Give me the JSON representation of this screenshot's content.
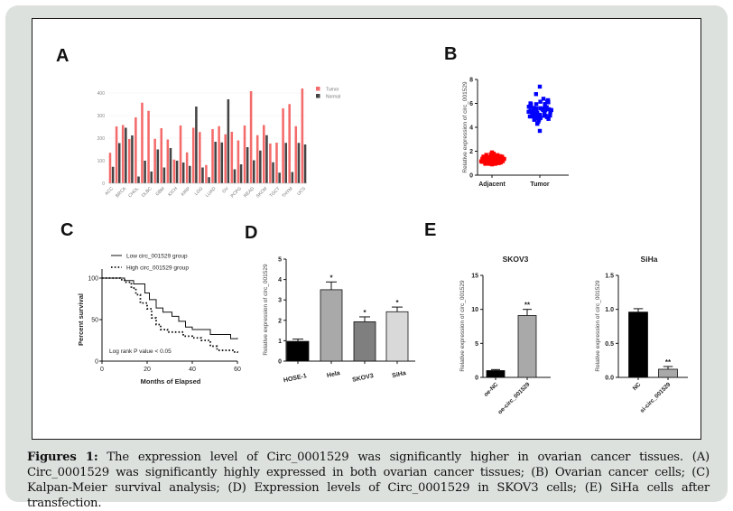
{
  "caption": {
    "lead": "Figures 1:",
    "text": " The expression level of Circ_0001529 was significantly higher in ovarian cancer tissues. (A) Circ_0001529 was significantly highly expressed in both ovarian cancer tissues; (B) Ovarian cancer cells; (C) Kalpan-Meier survival analysis; (D) Expression levels of Circ_0001529 in SKOV3 cells; (E) SiHa cells after transfection."
  },
  "panel_labels": {
    "a": "A",
    "b": "B",
    "c": "C",
    "d": "D",
    "e": "E"
  },
  "colors": {
    "tumor": "#f46b6b",
    "normal": "#444444",
    "adjacent": "#ff0000",
    "tumor_b": "#0000ff",
    "background": "#dde1de"
  },
  "chart_data": [
    {
      "id": "A",
      "type": "bar",
      "title": "",
      "xlabel": "",
      "ylabel": "",
      "ylim": [
        0,
        420
      ],
      "yticks": [
        0,
        100,
        200,
        300,
        400
      ],
      "grid": true,
      "legend": "top-right",
      "tick_labels": [
        "ACC",
        "BRCA",
        "CHOL",
        "DLBC",
        "GBM",
        "KICH",
        "KIRP",
        "LGG",
        "LUAD",
        "OV",
        "PCPG",
        "READ",
        "SKCM",
        "TGCT",
        "THYM",
        "UCS"
      ],
      "tick_label_every": 2,
      "series": [
        {
          "name": "Tumor",
          "values": [
            135,
            252,
            258,
            196,
            292,
            357,
            321,
            197,
            244,
            194,
            105,
            256,
            137,
            246,
            227,
            81,
            240,
            253,
            217,
            228,
            190,
            256,
            408,
            213,
            258,
            176,
            180,
            332,
            351,
            253,
            420
          ]
        },
        {
          "name": "Normal",
          "values": [
            73,
            178,
            246,
            212,
            30,
            100,
            52,
            150,
            70,
            156,
            100,
            92,
            77,
            340,
            70,
            27,
            184,
            181,
            372,
            62,
            84,
            160,
            102,
            145,
            213,
            93,
            47,
            179,
            50,
            179,
            172
          ]
        }
      ]
    },
    {
      "id": "B",
      "type": "scatter",
      "title": "",
      "xlabel": "",
      "ylabel": "Relative expression of circ_001529",
      "ylim": [
        0,
        8
      ],
      "yticks": [
        0,
        2,
        4,
        6,
        8
      ],
      "categories": [
        "Adjacent",
        "Tumor"
      ],
      "groups": [
        {
          "name": "Adjacent",
          "min": 0.9,
          "max": 1.9,
          "mean": 1.35,
          "n": 60
        },
        {
          "name": "Tumor",
          "min": 3.7,
          "max": 7.4,
          "mean": 5.5,
          "n": 60
        }
      ]
    },
    {
      "id": "C",
      "type": "line",
      "title": "",
      "xlabel": "Months of Elapsed",
      "ylabel": "Percent survival",
      "xlim": [
        0,
        60
      ],
      "ylim": [
        0,
        100
      ],
      "xticks": [
        0,
        20,
        40,
        60
      ],
      "yticks": [
        0,
        50,
        100
      ],
      "legend": "top",
      "annotation": "Log rank P value < 0.05",
      "series": [
        {
          "name": "Low circ_001529 group",
          "style": "solid",
          "x": [
            0,
            10,
            14,
            19,
            21,
            24,
            27,
            31,
            34,
            37,
            40,
            48,
            57,
            60
          ],
          "y": [
            100,
            97,
            93,
            82,
            74,
            64,
            59,
            54,
            48,
            41,
            38,
            32,
            27,
            28
          ]
        },
        {
          "name": "High circ_001529 group",
          "style": "dotted",
          "x": [
            0,
            7,
            8,
            10,
            13,
            15,
            17,
            20,
            22,
            24,
            26,
            29,
            36,
            40,
            44,
            48,
            51,
            58,
            60
          ],
          "y": [
            100,
            100,
            98,
            95,
            88,
            80,
            70,
            63,
            52,
            44,
            38,
            35,
            30,
            28,
            25,
            18,
            13,
            11,
            10
          ]
        }
      ]
    },
    {
      "id": "D",
      "type": "bar",
      "title": "",
      "xlabel": "",
      "ylabel": "Relative expression of circ_001529",
      "ylim": [
        0,
        5
      ],
      "yticks": [
        0,
        1,
        2,
        3,
        4,
        5
      ],
      "categories": [
        "HOSE-1",
        "Hela",
        "SKOV3",
        "SiHa"
      ],
      "values": [
        0.97,
        3.5,
        1.93,
        2.42
      ],
      "errors": [
        0.11,
        0.38,
        0.24,
        0.23
      ],
      "significance": [
        "",
        "*",
        "*",
        "*"
      ],
      "bar_colors": [
        "#000000",
        "#a9a9a9",
        "#7f7f7f",
        "#d9d9d9"
      ]
    },
    {
      "id": "E1",
      "type": "bar",
      "title": "SKOV3",
      "xlabel": "",
      "ylabel": "Relative expression of circ_001529",
      "ylim": [
        0,
        15
      ],
      "yticks": [
        0,
        5,
        10,
        15
      ],
      "categories": [
        "oe-NC",
        "oe-circ_001529"
      ],
      "values": [
        1.0,
        9.1
      ],
      "errors": [
        0.15,
        0.9
      ],
      "significance": [
        "",
        "**"
      ],
      "bar_colors": [
        "#000000",
        "#a9a9a9"
      ]
    },
    {
      "id": "E2",
      "type": "bar",
      "title": "SiHa",
      "xlabel": "",
      "ylabel": "Relative expression of circ_001529",
      "ylim": [
        0,
        1.5
      ],
      "yticks": [
        0.0,
        0.5,
        1.0,
        1.5
      ],
      "ytick_labels": [
        "0.0",
        "0.5",
        "1.0",
        "1.5"
      ],
      "categories": [
        "NC",
        "si-circ_001529"
      ],
      "values": [
        0.96,
        0.12
      ],
      "errors": [
        0.05,
        0.04
      ],
      "significance": [
        "",
        "**"
      ],
      "bar_colors": [
        "#000000",
        "#a9a9a9"
      ]
    }
  ]
}
